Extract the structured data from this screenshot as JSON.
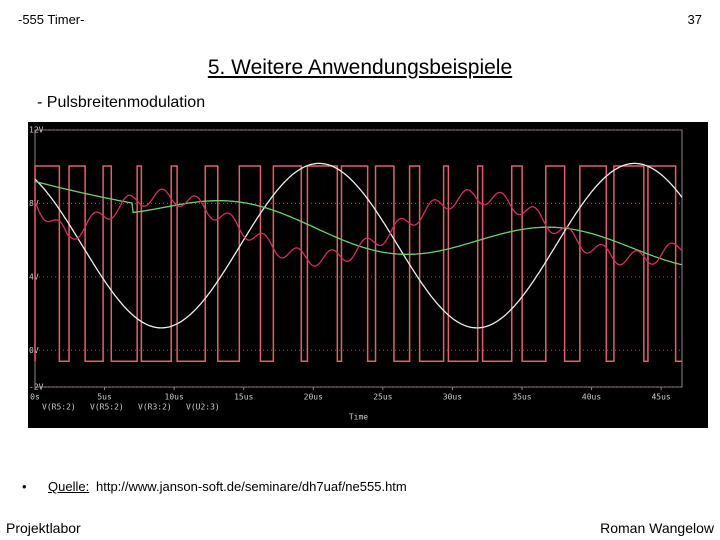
{
  "header_left": "-555 Timer-",
  "page_number": "37",
  "title": "5. Weitere Anwendungsbeispiele",
  "subtitle": "- Pulsbreitenmodulation",
  "figure": {
    "xlim": [
      0,
      46.5
    ],
    "ylim": [
      -2,
      12
    ],
    "yticks": [
      {
        "value": 12,
        "label": "12V"
      },
      {
        "value": 8,
        "label": "8V"
      },
      {
        "value": 4,
        "label": "4V"
      },
      {
        "value": 0,
        "label": "0V"
      },
      {
        "value": -2,
        "label": "-2V"
      }
    ],
    "xticks": [
      {
        "value": 0,
        "label": "0s"
      },
      {
        "value": 5,
        "label": "5us"
      },
      {
        "value": 10,
        "label": "10us"
      },
      {
        "value": 15,
        "label": "15us"
      },
      {
        "value": 20,
        "label": "20us"
      },
      {
        "value": 25,
        "label": "25us"
      },
      {
        "value": 30,
        "label": "30us"
      },
      {
        "value": 35,
        "label": "35us"
      },
      {
        "value": 40,
        "label": "40us"
      },
      {
        "value": 45,
        "label": "45us"
      }
    ],
    "xlabel": "Time",
    "legend": [
      "V(R5:2)",
      "V(R5:2)",
      "V(R3:2)",
      "V(U2:3)"
    ]
  },
  "source_label": "Quelle:",
  "source_url": "http://www.janson-soft.de/seminare/dh7uaf/ne555.htm",
  "footer_left": "Projektlabor",
  "footer_right": "Roman Wangelow"
}
